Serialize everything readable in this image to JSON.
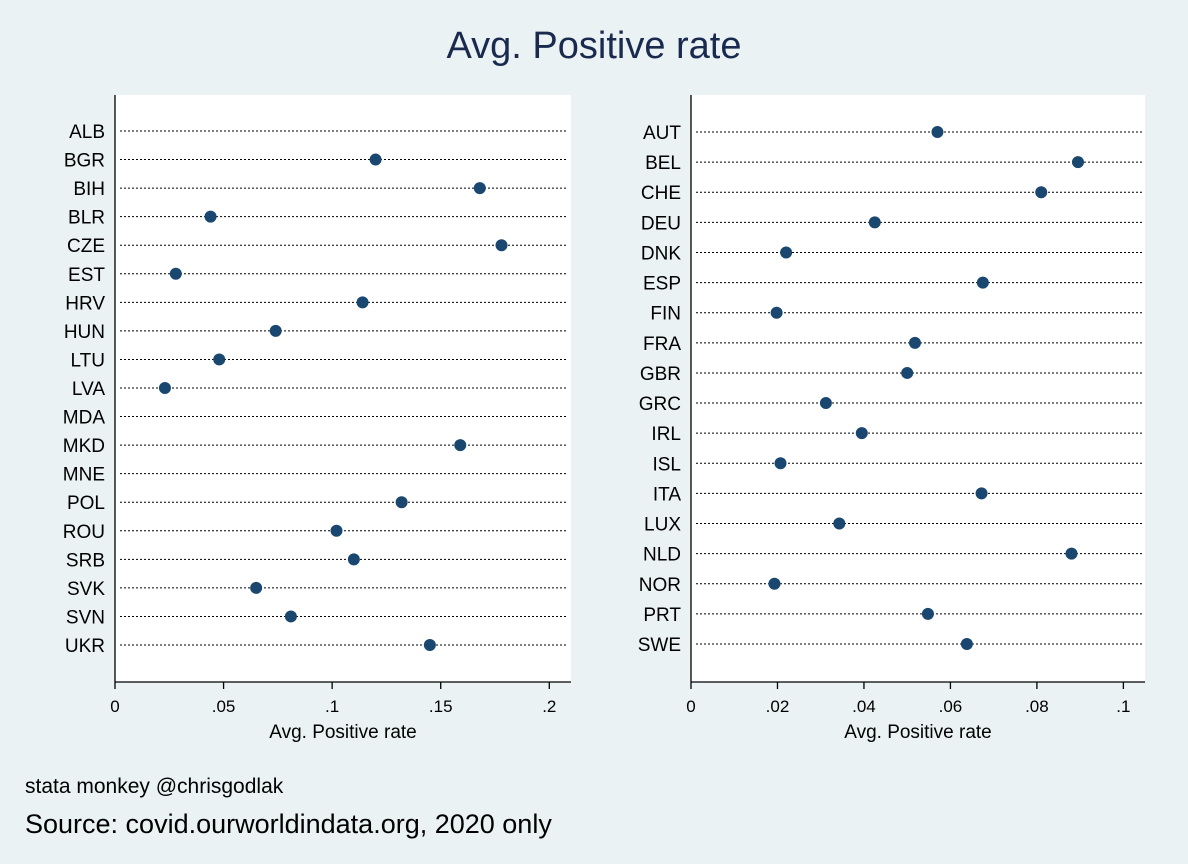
{
  "title": "Avg. Positive rate",
  "notes": {
    "credit": "stata monkey @chrisgodlak",
    "source": "Source: covid.ourworldindata.org, 2020 only"
  },
  "colors": {
    "background": "#eaf2f3",
    "plot_background": "#ffffff",
    "marker": "#1a476f",
    "title": "#1a2a4f"
  },
  "chart_data": [
    {
      "type": "scatter",
      "style": "dot plot",
      "xlabel": "Avg. Positive rate",
      "ylabel": "",
      "xlim": [
        0,
        0.21
      ],
      "xticks": [
        0,
        0.05,
        0.1,
        0.15,
        0.2
      ],
      "xtick_labels": [
        "0",
        ".05",
        ".1",
        ".15",
        ".2"
      ],
      "grid": false,
      "categories": [
        "ALB",
        "BGR",
        "BIH",
        "BLR",
        "CZE",
        "EST",
        "HRV",
        "HUN",
        "LTU",
        "LVA",
        "MDA",
        "MKD",
        "MNE",
        "POL",
        "ROU",
        "SRB",
        "SVK",
        "SVN",
        "UKR"
      ],
      "values": [
        null,
        0.12,
        0.168,
        0.044,
        0.178,
        0.028,
        0.114,
        0.074,
        0.048,
        0.023,
        null,
        0.159,
        null,
        0.132,
        0.102,
        0.11,
        0.065,
        0.081,
        0.145
      ]
    },
    {
      "type": "scatter",
      "style": "dot plot",
      "xlabel": "Avg. Positive rate",
      "ylabel": "",
      "xlim": [
        0,
        0.105
      ],
      "xticks": [
        0,
        0.02,
        0.04,
        0.06,
        0.08,
        0.1
      ],
      "xtick_labels": [
        "0",
        ".02",
        ".04",
        ".06",
        ".08",
        ".1"
      ],
      "grid": false,
      "categories": [
        "AUT",
        "BEL",
        "CHE",
        "DEU",
        "DNK",
        "ESP",
        "FIN",
        "FRA",
        "GBR",
        "GRC",
        "IRL",
        "ISL",
        "ITA",
        "LUX",
        "NLD",
        "NOR",
        "PRT",
        "SWE"
      ],
      "values": [
        0.057,
        0.0895,
        0.081,
        0.0425,
        0.022,
        0.0675,
        0.0198,
        0.0518,
        0.05,
        0.0312,
        0.0395,
        0.0207,
        0.0672,
        0.0343,
        0.088,
        0.0193,
        0.0548,
        0.0638
      ]
    }
  ]
}
